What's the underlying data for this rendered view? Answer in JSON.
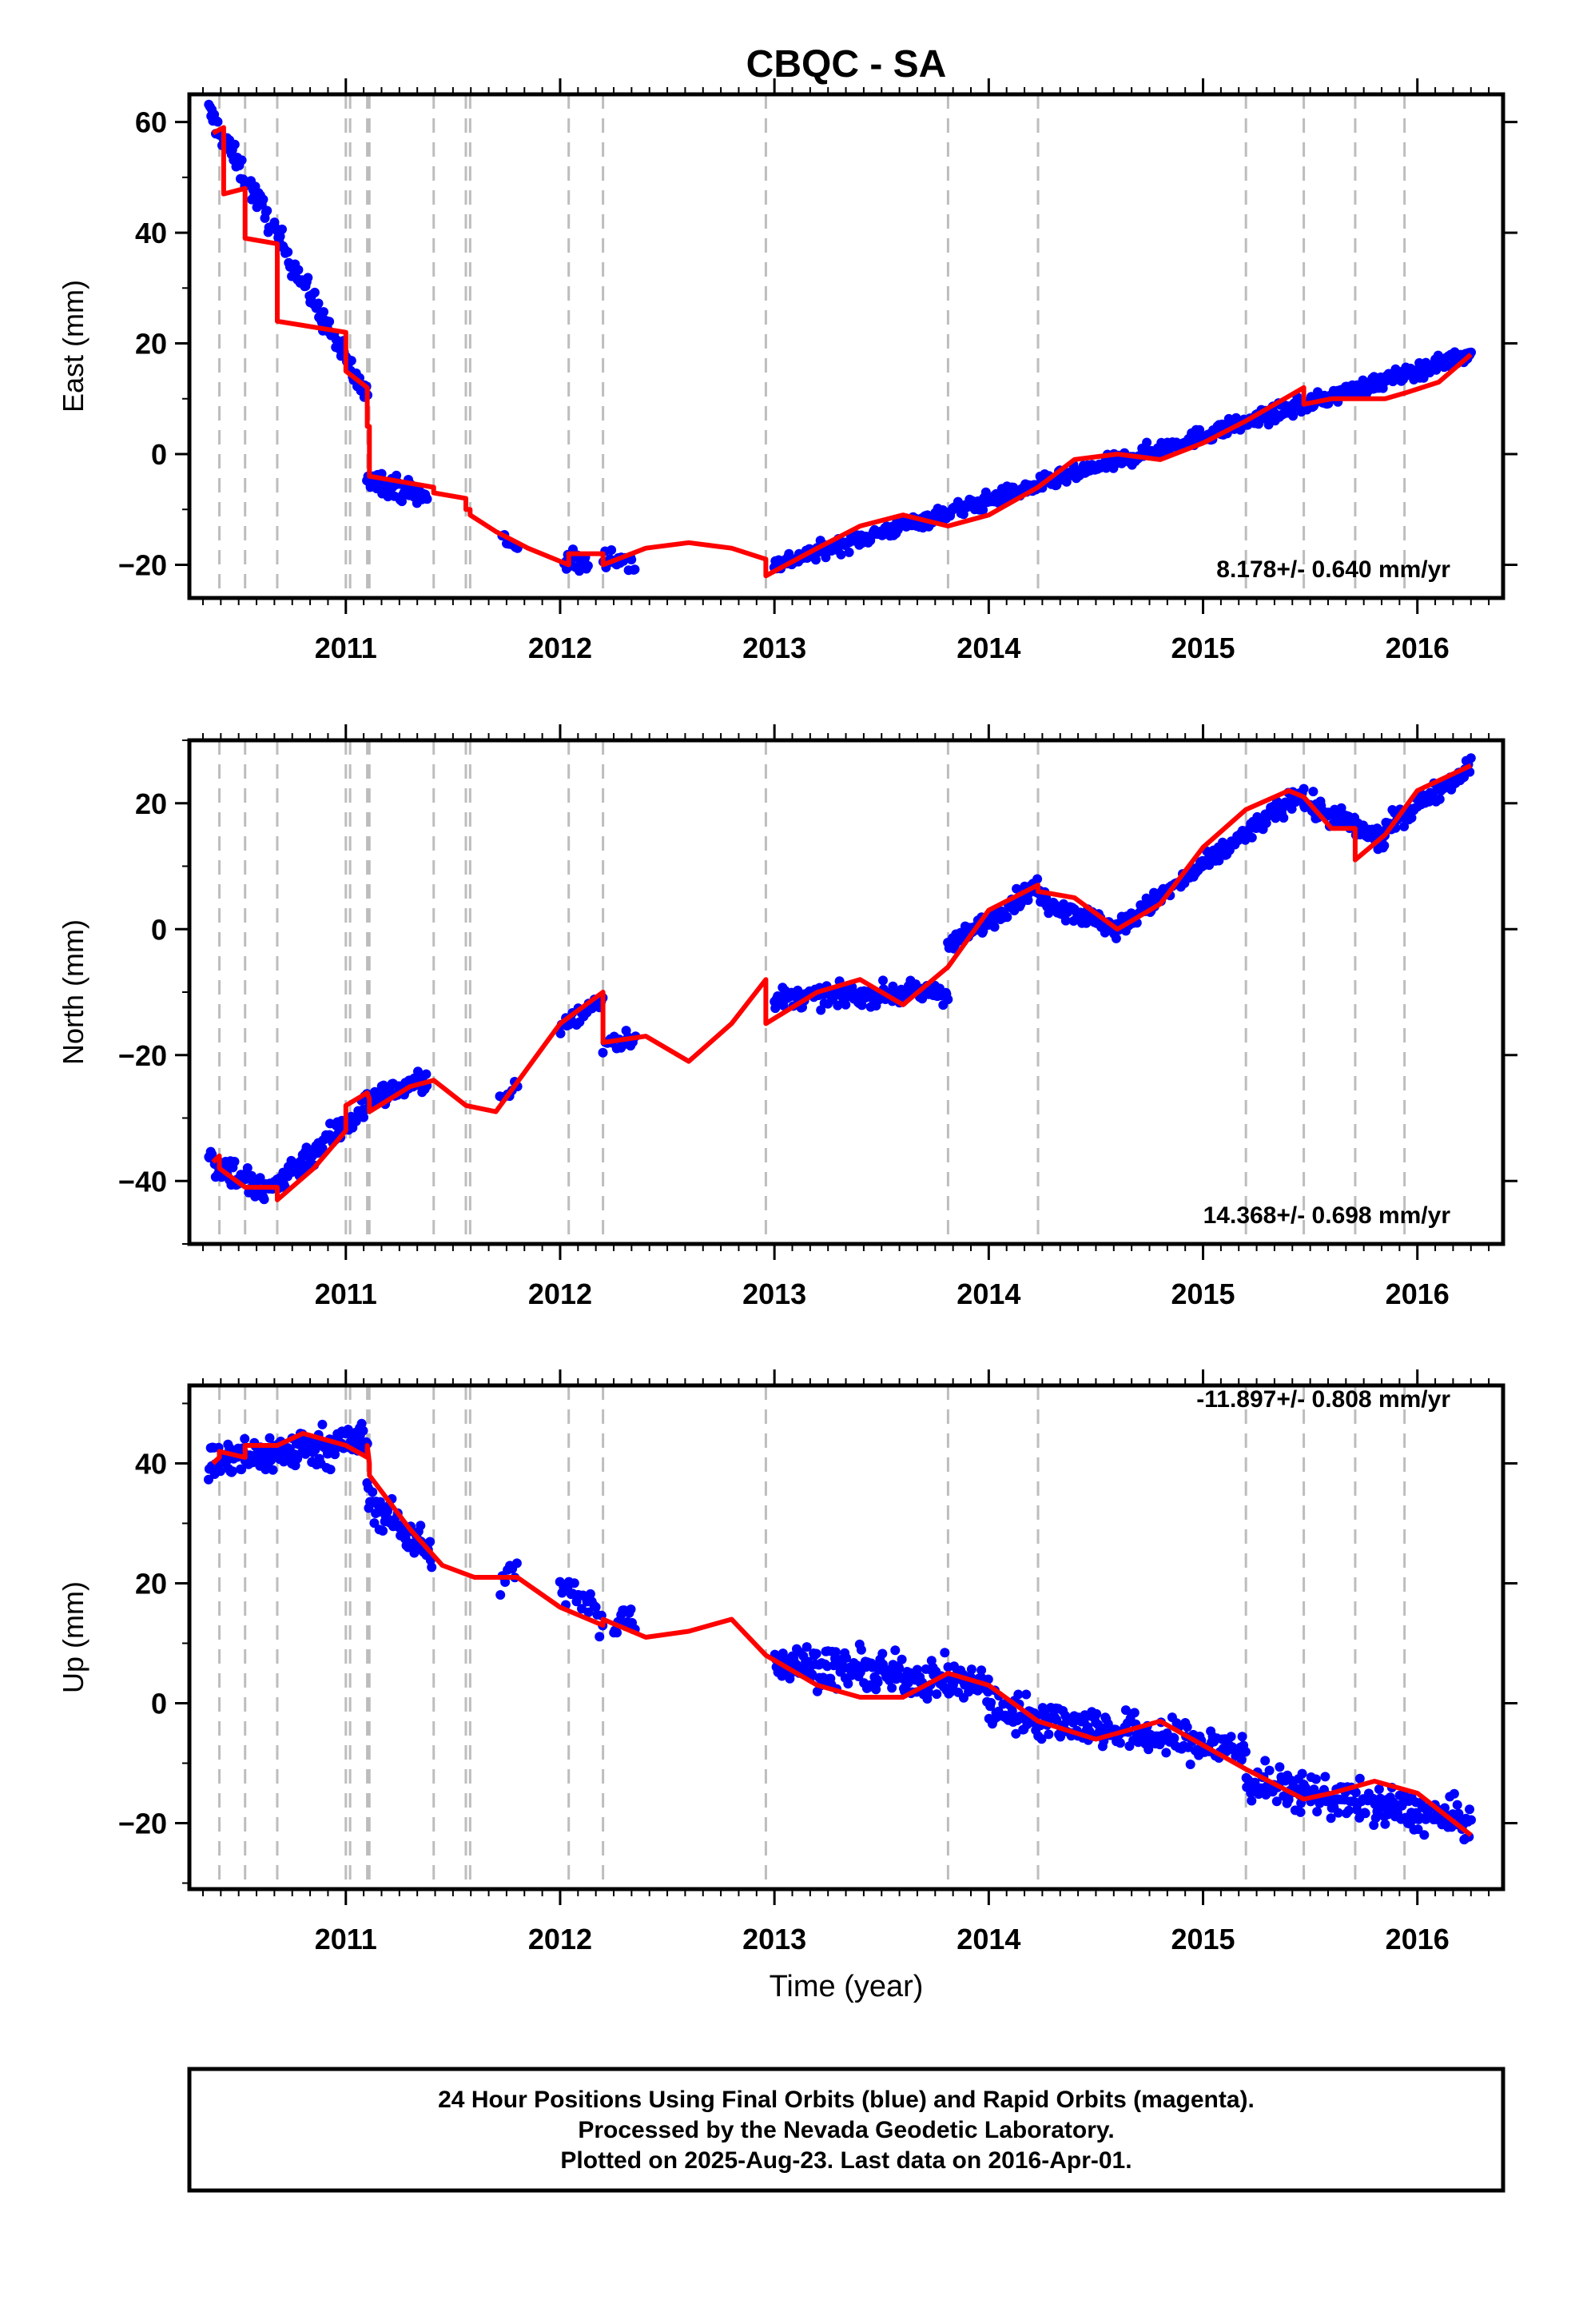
{
  "title": "CBQC - SA",
  "colors": {
    "data": "#0000ff",
    "model": "#ff0000",
    "breaks": "#bdbdbd",
    "axis": "#000000"
  },
  "x_ticks": [
    "2011",
    "2012",
    "2013",
    "2014",
    "2015",
    "2016"
  ],
  "x_label": "Time (year)",
  "footer": {
    "line1": "24 Hour Positions Using Final Orbits (blue) and Rapid Orbits (magenta).",
    "line2": "Processed by the Nevada Geodetic Laboratory.",
    "line3": "Plotted on 2025-Aug-23. Last data on 2016-Apr-01."
  },
  "chart_data": [
    {
      "type": "scatter",
      "panel": "east",
      "ylabel": "East (mm)",
      "rate_label": "8.178+/- 0.640 mm/yr",
      "xlim": [
        2010.27,
        2016.4
      ],
      "ylim": [
        -26,
        65
      ],
      "yticks": [
        -20,
        0,
        20,
        40,
        60
      ],
      "ytick_labels": [
        "−20",
        "0",
        "20",
        "40",
        "60"
      ],
      "breaks": [
        2010.41,
        2010.53,
        2010.68,
        2011.0,
        2011.02,
        2011.1,
        2011.11,
        2011.41,
        2011.56,
        2011.58,
        2012.04,
        2012.2,
        2012.96,
        2013.81,
        2014.23,
        2015.2,
        2015.47,
        2015.71,
        2015.94
      ],
      "data_segments": [
        {
          "x": [
            2010.36,
            2011.1
          ],
          "y": [
            62,
            10
          ],
          "n": 140,
          "noise": 2.2
        },
        {
          "x": [
            2011.1,
            2011.38
          ],
          "y": [
            -4,
            -8
          ],
          "n": 60,
          "noise": 2.0
        },
        {
          "x": [
            2011.73,
            2011.8
          ],
          "y": [
            -15,
            -17
          ],
          "n": 8,
          "noise": 1.2
        },
        {
          "x": [
            2012.02,
            2012.13
          ],
          "y": [
            -19,
            -20
          ],
          "n": 20,
          "noise": 2.0
        },
        {
          "x": [
            2012.2,
            2012.35
          ],
          "y": [
            -18,
            -20
          ],
          "n": 20,
          "noise": 2.0
        },
        {
          "x": [
            2013.0,
            2016.25
          ],
          "y": [
            -20,
            18
          ],
          "n": 620,
          "noise": 1.4
        }
      ],
      "model": {
        "x": [
          2010.38,
          2010.43,
          2010.43,
          2010.53,
          2010.53,
          2010.68,
          2010.68,
          2011.0,
          2011.0,
          2011.1,
          2011.1,
          2011.11,
          2011.11,
          2011.41,
          2011.41,
          2011.56,
          2011.56,
          2011.58,
          2011.58,
          2011.7,
          2011.85,
          2012.04,
          2012.04,
          2012.2,
          2012.2,
          2012.4,
          2012.6,
          2012.8,
          2012.96,
          2012.96,
          2013.2,
          2013.4,
          2013.6,
          2013.81,
          2014.0,
          2014.23,
          2014.4,
          2014.6,
          2014.8,
          2015.0,
          2015.2,
          2015.47,
          2015.47,
          2015.6,
          2015.71,
          2015.85,
          2015.94,
          2016.1,
          2016.25
        ],
        "y": [
          58,
          59,
          47,
          48,
          39,
          38,
          24,
          22,
          15,
          12,
          5,
          5,
          -4,
          -6,
          -7,
          -8,
          -10,
          -10,
          -11,
          -14,
          -17,
          -20,
          -18,
          -18,
          -20,
          -17,
          -16,
          -17,
          -19,
          -22,
          -17,
          -13,
          -11,
          -13,
          -11,
          -6,
          -1,
          0,
          -1,
          2,
          6,
          12,
          9,
          10,
          10,
          10,
          11,
          13,
          18
        ]
      }
    },
    {
      "type": "scatter",
      "panel": "north",
      "ylabel": "North (mm)",
      "rate_label": "14.368+/- 0.698 mm/yr",
      "xlim": [
        2010.27,
        2016.4
      ],
      "ylim": [
        -50,
        30
      ],
      "yticks": [
        -40,
        -20,
        0,
        20
      ],
      "ytick_labels": [
        "−40",
        "−20",
        "0",
        "20"
      ],
      "breaks": [
        2010.41,
        2010.53,
        2010.68,
        2011.0,
        2011.02,
        2011.1,
        2011.11,
        2011.41,
        2011.56,
        2011.58,
        2012.04,
        2012.2,
        2012.96,
        2013.81,
        2014.23,
        2015.2,
        2015.47,
        2015.71,
        2015.94
      ],
      "data_segments": [
        {
          "x": [
            2010.36,
            2010.62
          ],
          "y": [
            -36,
            -42
          ],
          "n": 50,
          "noise": 2.6
        },
        {
          "x": [
            2010.62,
            2011.1
          ],
          "y": [
            -42,
            -28
          ],
          "n": 90,
          "noise": 2.2
        },
        {
          "x": [
            2011.1,
            2011.38
          ],
          "y": [
            -27,
            -24
          ],
          "n": 55,
          "noise": 1.6
        },
        {
          "x": [
            2011.72,
            2011.8
          ],
          "y": [
            -27,
            -25
          ],
          "n": 8,
          "noise": 1.2
        },
        {
          "x": [
            2012.0,
            2012.2
          ],
          "y": [
            -16,
            -11
          ],
          "n": 25,
          "noise": 2.0
        },
        {
          "x": [
            2012.2,
            2012.35
          ],
          "y": [
            -18,
            -17
          ],
          "n": 15,
          "noise": 1.8
        },
        {
          "x": [
            2013.0,
            2013.81
          ],
          "y": [
            -11,
            -10
          ],
          "n": 150,
          "noise": 1.6
        },
        {
          "x": [
            2013.81,
            2014.23
          ],
          "y": [
            -3,
            7
          ],
          "n": 80,
          "noise": 1.5
        },
        {
          "x": [
            2014.23,
            2014.6
          ],
          "y": [
            5,
            0
          ],
          "n": 70,
          "noise": 1.6
        },
        {
          "x": [
            2014.6,
            2015.47
          ],
          "y": [
            0,
            22
          ],
          "n": 160,
          "noise": 1.5
        },
        {
          "x": [
            2015.47,
            2015.85
          ],
          "y": [
            20,
            14
          ],
          "n": 70,
          "noise": 1.8
        },
        {
          "x": [
            2015.85,
            2016.25
          ],
          "y": [
            16,
            26
          ],
          "n": 75,
          "noise": 1.5
        }
      ],
      "model": {
        "x": [
          2010.38,
          2010.41,
          2010.41,
          2010.53,
          2010.68,
          2010.68,
          2010.85,
          2011.0,
          2011.0,
          2011.1,
          2011.1,
          2011.11,
          2011.11,
          2011.3,
          2011.41,
          2011.56,
          2011.7,
          2011.85,
          2012.0,
          2012.2,
          2012.2,
          2012.4,
          2012.6,
          2012.8,
          2012.96,
          2012.96,
          2013.2,
          2013.4,
          2013.6,
          2013.81,
          2014.0,
          2014.23,
          2014.23,
          2014.4,
          2014.6,
          2014.8,
          2015.0,
          2015.2,
          2015.4,
          2015.47,
          2015.6,
          2015.71,
          2015.71,
          2015.85,
          2016.0,
          2016.25
        ],
        "y": [
          -37,
          -36,
          -38,
          -41,
          -41,
          -43,
          -38,
          -32,
          -28,
          -26,
          -26,
          -27,
          -29,
          -25,
          -24,
          -28,
          -29,
          -22,
          -15,
          -10,
          -18,
          -17,
          -21,
          -15,
          -8,
          -15,
          -10,
          -8,
          -12,
          -6,
          3,
          7,
          6,
          5,
          0,
          4,
          13,
          19,
          22,
          21,
          16,
          16,
          11,
          15,
          22,
          26
        ]
      }
    },
    {
      "type": "scatter",
      "panel": "up",
      "ylabel": "Up (mm)",
      "rate_label": "-11.897+/- 0.808 mm/yr",
      "xlim": [
        2010.27,
        2016.4
      ],
      "ylim": [
        -31,
        53
      ],
      "yticks": [
        -20,
        0,
        20,
        40
      ],
      "ytick_labels": [
        "−20",
        "0",
        "20",
        "40"
      ],
      "breaks": [
        2010.41,
        2010.53,
        2010.68,
        2011.0,
        2011.02,
        2011.1,
        2011.11,
        2011.41,
        2011.56,
        2011.58,
        2012.04,
        2012.2,
        2012.96,
        2013.81,
        2014.23,
        2015.2,
        2015.47,
        2015.71,
        2015.94
      ],
      "data_segments": [
        {
          "x": [
            2010.36,
            2011.1
          ],
          "y": [
            40,
            44
          ],
          "n": 160,
          "noise": 3.2
        },
        {
          "x": [
            2011.1,
            2011.4
          ],
          "y": [
            34,
            25
          ],
          "n": 70,
          "noise": 3.0
        },
        {
          "x": [
            2011.72,
            2011.8
          ],
          "y": [
            20,
            22
          ],
          "n": 8,
          "noise": 2.0
        },
        {
          "x": [
            2012.0,
            2012.2
          ],
          "y": [
            20,
            14
          ],
          "n": 25,
          "noise": 3.0
        },
        {
          "x": [
            2012.25,
            2012.35
          ],
          "y": [
            13,
            15
          ],
          "n": 15,
          "noise": 3.0
        },
        {
          "x": [
            2013.0,
            2014.0
          ],
          "y": [
            7,
            3
          ],
          "n": 200,
          "noise": 3.2
        },
        {
          "x": [
            2014.0,
            2015.2
          ],
          "y": [
            -1,
            -8
          ],
          "n": 220,
          "noise": 3.2
        },
        {
          "x": [
            2015.2,
            2016.25
          ],
          "y": [
            -13,
            -20
          ],
          "n": 200,
          "noise": 3.2
        }
      ],
      "model": {
        "x": [
          2010.38,
          2010.41,
          2010.41,
          2010.53,
          2010.53,
          2010.68,
          2010.8,
          2011.0,
          2011.1,
          2011.1,
          2011.11,
          2011.11,
          2011.3,
          2011.45,
          2011.6,
          2011.8,
          2012.0,
          2012.2,
          2012.2,
          2012.4,
          2012.6,
          2012.8,
          2012.96,
          2013.2,
          2013.4,
          2013.6,
          2013.81,
          2014.0,
          2014.23,
          2014.5,
          2014.8,
          2015.0,
          2015.2,
          2015.47,
          2015.6,
          2015.8,
          2016.0,
          2016.25
        ],
        "y": [
          40,
          41,
          42,
          41,
          43,
          43,
          45,
          43,
          41,
          43,
          40,
          38,
          29,
          23,
          21,
          21,
          16,
          13,
          14,
          11,
          12,
          14,
          8,
          3,
          1,
          1,
          5,
          3,
          -3,
          -6,
          -3,
          -7,
          -11,
          -16,
          -15,
          -13,
          -15,
          -22
        ]
      }
    }
  ]
}
